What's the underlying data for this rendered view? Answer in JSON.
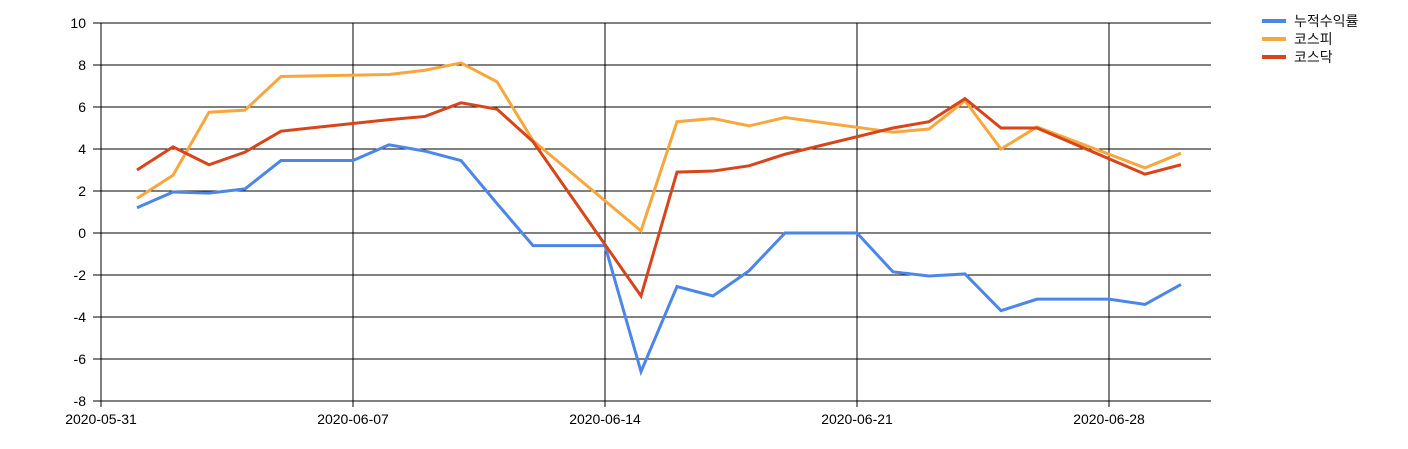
{
  "chart": {
    "background_color": "#ffffff",
    "grid_color": "#000000",
    "tick_label_color": "#000000",
    "legend_text_color": "#111111"
  },
  "chart_data": {
    "type": "line",
    "title": "",
    "xlabel": "",
    "ylabel": "",
    "grid": "on",
    "legend_position": "top-right",
    "x_unit": "days since 2020-05-31",
    "x_axis_ticks": [
      {
        "day": 0,
        "label": "2020-05-31"
      },
      {
        "day": 7,
        "label": "2020-06-07"
      },
      {
        "day": 14,
        "label": "2020-06-14"
      },
      {
        "day": 21,
        "label": "2020-06-21"
      },
      {
        "day": 28,
        "label": "2020-06-28"
      }
    ],
    "y_axis_ticks": [
      10,
      8,
      6,
      4,
      2,
      0,
      -2,
      -4,
      -6,
      -8
    ],
    "ylim": [
      -8,
      10
    ],
    "xlim_days": [
      0,
      30.8
    ],
    "series": [
      {
        "name": "누적수익률",
        "color": "#4c86e8",
        "points": [
          [
            1,
            1.2
          ],
          [
            2,
            1.95
          ],
          [
            3,
            1.9
          ],
          [
            4,
            2.1
          ],
          [
            5,
            3.45
          ],
          [
            6,
            3.45
          ],
          [
            7,
            3.45
          ],
          [
            8,
            4.2
          ],
          [
            9,
            3.9
          ],
          [
            10,
            3.45
          ],
          [
            11,
            1.4
          ],
          [
            12,
            -0.6
          ],
          [
            13,
            -0.6
          ],
          [
            14,
            -0.6
          ],
          [
            15,
            -6.6
          ],
          [
            16,
            -2.55
          ],
          [
            17,
            -3.0
          ],
          [
            18,
            -1.8
          ],
          [
            19,
            0.0
          ],
          [
            20,
            0.0
          ],
          [
            21,
            0.0
          ],
          [
            22,
            -1.85
          ],
          [
            23,
            -2.05
          ],
          [
            24,
            -1.95
          ],
          [
            25,
            -3.7
          ],
          [
            26,
            -3.15
          ],
          [
            27,
            -3.15
          ],
          [
            28,
            -3.15
          ],
          [
            29,
            -3.4
          ],
          [
            30,
            -2.45
          ]
        ]
      },
      {
        "name": "코스피",
        "color": "#f6a73e",
        "points": [
          [
            1,
            1.65
          ],
          [
            2,
            2.75
          ],
          [
            3,
            5.75
          ],
          [
            4,
            5.85
          ],
          [
            5,
            7.45
          ],
          [
            8,
            7.55
          ],
          [
            9,
            7.75
          ],
          [
            10,
            8.1
          ],
          [
            11,
            7.2
          ],
          [
            12,
            4.4
          ],
          [
            15,
            0.1
          ],
          [
            16,
            5.3
          ],
          [
            17,
            5.45
          ],
          [
            18,
            5.1
          ],
          [
            19,
            5.5
          ],
          [
            22,
            4.8
          ],
          [
            23,
            4.95
          ],
          [
            24,
            6.3
          ],
          [
            25,
            4.0
          ],
          [
            26,
            5.05
          ],
          [
            29,
            3.1
          ],
          [
            30,
            3.8
          ]
        ]
      },
      {
        "name": "코스닥",
        "color": "#d8451a",
        "points": [
          [
            1,
            3.0
          ],
          [
            2,
            4.1
          ],
          [
            3,
            3.25
          ],
          [
            4,
            3.85
          ],
          [
            5,
            4.85
          ],
          [
            8,
            5.4
          ],
          [
            9,
            5.55
          ],
          [
            10,
            6.2
          ],
          [
            11,
            5.9
          ],
          [
            12,
            4.35
          ],
          [
            15,
            -3.0
          ],
          [
            16,
            2.9
          ],
          [
            17,
            2.95
          ],
          [
            18,
            3.2
          ],
          [
            19,
            3.75
          ],
          [
            22,
            5.0
          ],
          [
            23,
            5.3
          ],
          [
            24,
            6.4
          ],
          [
            25,
            5.0
          ],
          [
            26,
            5.0
          ],
          [
            29,
            2.8
          ],
          [
            30,
            3.25
          ]
        ]
      }
    ]
  }
}
